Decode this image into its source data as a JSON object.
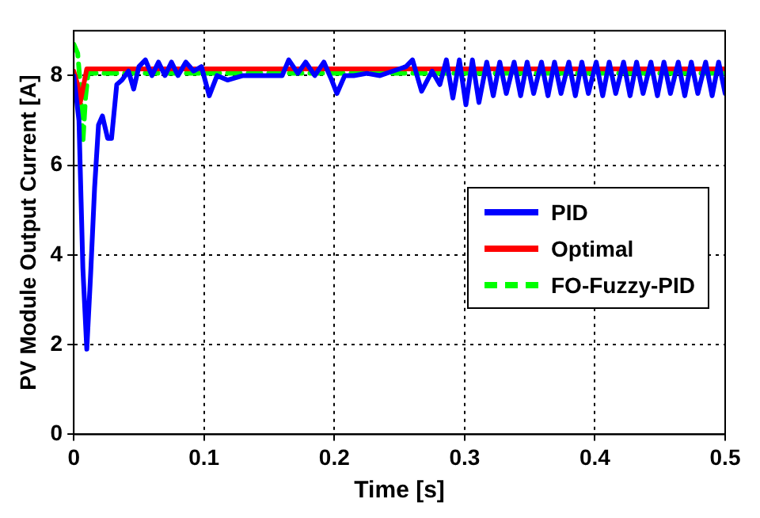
{
  "chart_data": {
    "type": "line",
    "xlabel": "Time [s]",
    "ylabel": "PV Module Output Current [A]",
    "xlim": [
      0,
      0.5
    ],
    "xticks": [
      0,
      0.1,
      0.2,
      0.3,
      0.4,
      0.5
    ],
    "ylim": [
      0,
      9
    ],
    "yticks": [
      0,
      2,
      4,
      6,
      8
    ],
    "grid": true,
    "legend": "right",
    "marker": "none",
    "series": [
      {
        "name": "PID",
        "color": "#0000ff",
        "x": [
          0,
          0.004,
          0.007,
          0.01,
          0.013,
          0.016,
          0.019,
          0.022,
          0.026,
          0.029,
          0.033,
          0.037,
          0.042,
          0.046,
          0.05,
          0.055,
          0.06,
          0.065,
          0.07,
          0.075,
          0.08,
          0.086,
          0.092,
          0.098,
          0.104,
          0.11,
          0.118,
          0.13,
          0.145,
          0.16,
          0.165,
          0.172,
          0.178,
          0.185,
          0.192,
          0.198,
          0.202,
          0.208,
          0.215,
          0.225,
          0.235,
          0.245,
          0.255,
          0.26,
          0.267,
          0.275,
          0.281,
          0.286,
          0.291,
          0.296,
          0.301,
          0.306,
          0.311,
          0.317,
          0.322,
          0.327,
          0.332,
          0.338,
          0.343,
          0.348,
          0.353,
          0.359,
          0.364,
          0.369,
          0.374,
          0.38,
          0.385,
          0.39,
          0.395,
          0.401,
          0.406,
          0.411,
          0.416,
          0.422,
          0.427,
          0.432,
          0.437,
          0.443,
          0.448,
          0.453,
          0.458,
          0.464,
          0.469,
          0.474,
          0.479,
          0.485,
          0.49,
          0.495,
          0.5
        ],
        "values": [
          8.0,
          7.0,
          3.7,
          1.9,
          3.6,
          5.5,
          6.9,
          7.1,
          6.6,
          6.6,
          7.8,
          7.9,
          8.1,
          7.7,
          8.2,
          8.35,
          8.0,
          8.3,
          8.0,
          8.3,
          8.0,
          8.3,
          8.1,
          8.2,
          7.55,
          8.0,
          7.9,
          8.0,
          8.0,
          8.0,
          8.35,
          8.05,
          8.3,
          8.0,
          8.3,
          7.9,
          7.6,
          8.0,
          8.0,
          8.05,
          8.0,
          8.1,
          8.2,
          8.35,
          7.65,
          8.1,
          7.8,
          8.35,
          7.5,
          8.35,
          7.35,
          8.35,
          7.4,
          8.3,
          7.55,
          8.3,
          7.6,
          8.3,
          7.55,
          8.3,
          7.6,
          8.3,
          7.55,
          8.3,
          7.6,
          8.3,
          7.55,
          8.3,
          7.6,
          8.3,
          7.55,
          8.3,
          7.6,
          8.3,
          7.55,
          8.3,
          7.6,
          8.3,
          7.55,
          8.3,
          7.6,
          8.3,
          7.55,
          8.3,
          7.6,
          8.3,
          7.55,
          8.3,
          7.6
        ]
      },
      {
        "name": "Optimal",
        "color": "#ff0000",
        "x": [
          0,
          0.003,
          0.005,
          0.007,
          0.01,
          0.5
        ],
        "values": [
          8.1,
          7.8,
          7.4,
          7.7,
          8.15,
          8.15
        ]
      },
      {
        "name": "FO-Fuzzy-PID",
        "color": "#00ff00",
        "line_style": "dashed",
        "x": [
          0,
          0.003,
          0.005,
          0.007,
          0.009,
          0.011,
          0.5
        ],
        "values": [
          8.7,
          8.5,
          7.8,
          6.5,
          7.5,
          8.05,
          8.05
        ]
      }
    ]
  }
}
